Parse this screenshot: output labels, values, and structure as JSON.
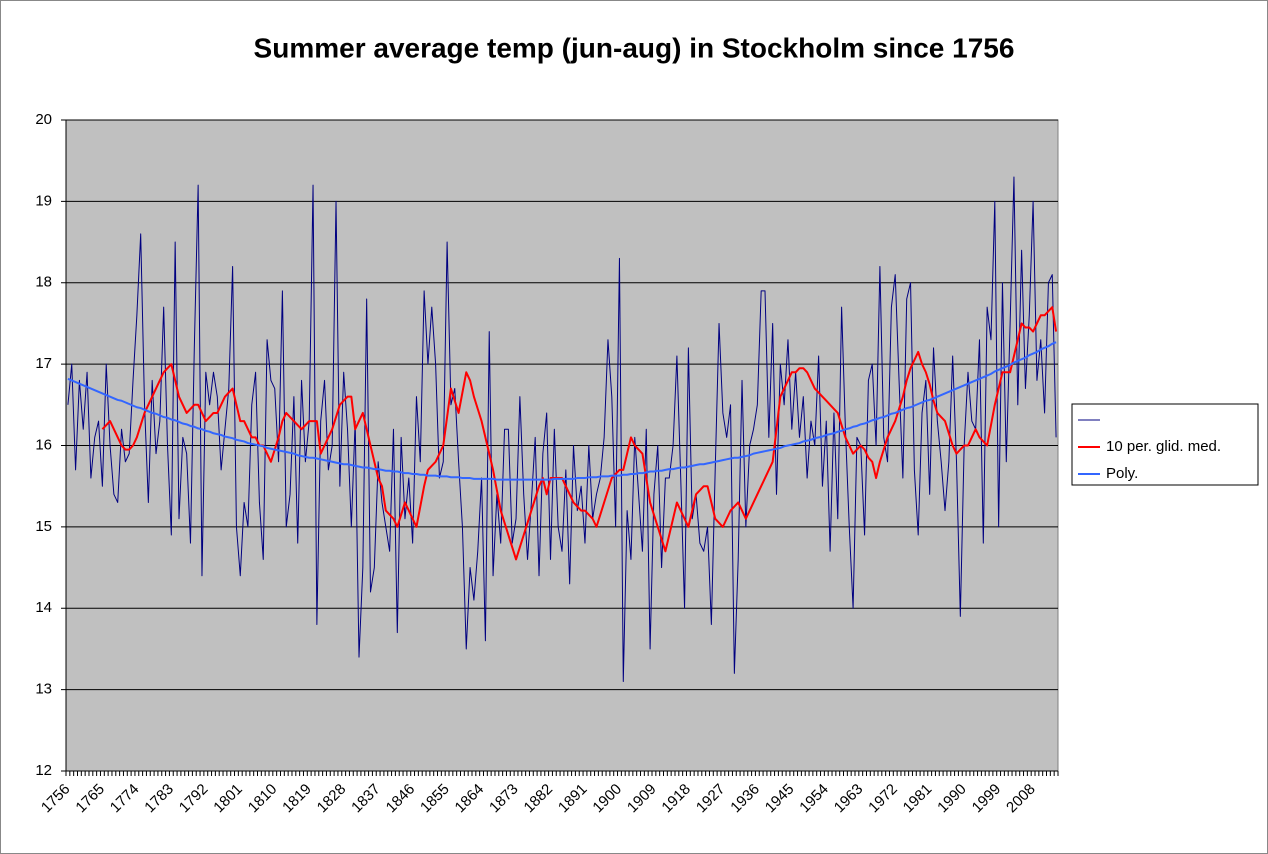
{
  "chart_data": {
    "type": "line",
    "title": "Summer average temp (jun-aug) in Stockholm since 1756",
    "categories": [
      "1756",
      null,
      null,
      null,
      null,
      null,
      null,
      null,
      null,
      "1765",
      null,
      null,
      null,
      null,
      null,
      null,
      null,
      null,
      "1774",
      null,
      null,
      null,
      null,
      null,
      null,
      null,
      null,
      "1783",
      null,
      null,
      null,
      null,
      null,
      null,
      null,
      null,
      "1792",
      null,
      null,
      null,
      null,
      null,
      null,
      null,
      null,
      "1801",
      null,
      null,
      null,
      null,
      null,
      null,
      null,
      null,
      "1810",
      null,
      null,
      null,
      null,
      null,
      null,
      null,
      null,
      "1819",
      null,
      null,
      null,
      null,
      null,
      null,
      null,
      null,
      "1828",
      null,
      null,
      null,
      null,
      null,
      null,
      null,
      null,
      "1837",
      null,
      null,
      null,
      null,
      null,
      null,
      null,
      null,
      "1846",
      null,
      null,
      null,
      null,
      null,
      null,
      null,
      null,
      "1855",
      null,
      null,
      null,
      null,
      null,
      null,
      null,
      null,
      "1864",
      null,
      null,
      null,
      null,
      null,
      null,
      null,
      null,
      "1873",
      null,
      null,
      null,
      null,
      null,
      null,
      null,
      null,
      "1882",
      null,
      null,
      null,
      null,
      null,
      null,
      null,
      null,
      "1891",
      null,
      null,
      null,
      null,
      null,
      null,
      null,
      null,
      "1900",
      null,
      null,
      null,
      null,
      null,
      null,
      null,
      null,
      "1909",
      null,
      null,
      null,
      null,
      null,
      null,
      null,
      null,
      "1918",
      null,
      null,
      null,
      null,
      null,
      null,
      null,
      null,
      "1927",
      null,
      null,
      null,
      null,
      null,
      null,
      null,
      null,
      "1936",
      null,
      null,
      null,
      null,
      null,
      null,
      null,
      null,
      "1945",
      null,
      null,
      null,
      null,
      null,
      null,
      null,
      null,
      "1954",
      null,
      null,
      null,
      null,
      null,
      null,
      null,
      null,
      "1963",
      null,
      null,
      null,
      null,
      null,
      null,
      null,
      null,
      "1972",
      null,
      null,
      null,
      null,
      null,
      null,
      null,
      null,
      "1981",
      null,
      null,
      null,
      null,
      null,
      null,
      null,
      null,
      "1990",
      null,
      null,
      null,
      null,
      null,
      null,
      null,
      null,
      "1999",
      null,
      null,
      null,
      null,
      null,
      null,
      null,
      null,
      "2008",
      null,
      null,
      null,
      null,
      null,
      null
    ],
    "series": [
      {
        "color": "#000080",
        "values": [
          16.5,
          17.0,
          15.7,
          16.8,
          16.2,
          16.9,
          15.6,
          16.1,
          16.3,
          15.5,
          17.0,
          16.0,
          15.4,
          15.3,
          16.2,
          15.8,
          15.9,
          16.8,
          17.6,
          18.6,
          16.5,
          15.3,
          16.8,
          15.9,
          16.3,
          17.7,
          16.0,
          14.9,
          18.5,
          15.1,
          16.1,
          15.9,
          14.8,
          17.2,
          19.2,
          14.4,
          16.9,
          16.5,
          16.9,
          16.6,
          15.7,
          16.2,
          16.7,
          18.2,
          15.0,
          14.4,
          15.3,
          15.0,
          16.5,
          16.9,
          15.3,
          14.6,
          17.3,
          16.8,
          16.7,
          15.8,
          17.9,
          15.0,
          15.4,
          16.6,
          14.8,
          16.8,
          15.8,
          16.3,
          19.2,
          13.8,
          16.3,
          16.8,
          15.7,
          16.0,
          19.0,
          15.5,
          16.9,
          16.2,
          15.0,
          16.3,
          13.4,
          14.5,
          17.8,
          14.2,
          14.5,
          15.8,
          15.3,
          15.0,
          14.7,
          16.2,
          13.7,
          16.1,
          15.1,
          15.6,
          14.8,
          16.6,
          15.8,
          17.9,
          17.0,
          17.7,
          17.0,
          15.6,
          15.8,
          18.5,
          16.5,
          16.7,
          15.8,
          15.0,
          13.5,
          14.5,
          14.1,
          14.7,
          15.6,
          13.6,
          17.4,
          14.4,
          15.4,
          14.8,
          16.2,
          16.2,
          14.8,
          15.1,
          16.6,
          15.4,
          14.6,
          15.3,
          16.1,
          14.4,
          15.9,
          16.4,
          14.6,
          16.2,
          15.0,
          14.7,
          15.7,
          14.3,
          16.0,
          15.2,
          15.5,
          14.8,
          16.0,
          15.1,
          15.4,
          15.6,
          16.1,
          17.3,
          16.6,
          15.0,
          18.3,
          13.1,
          15.2,
          14.6,
          16.1,
          15.4,
          14.7,
          16.2,
          13.5,
          15.4,
          16.0,
          14.5,
          15.6,
          15.6,
          16.0,
          17.1,
          15.6,
          14.0,
          17.2,
          15.1,
          15.4,
          14.8,
          14.7,
          15.0,
          13.8,
          15.7,
          17.5,
          16.4,
          16.1,
          16.5,
          13.2,
          14.6,
          16.8,
          15.0,
          16.0,
          16.2,
          16.5,
          17.9,
          17.9,
          16.1,
          17.5,
          15.4,
          17.0,
          16.5,
          17.3,
          16.2,
          16.9,
          16.1,
          16.6,
          15.6,
          16.3,
          16.0,
          17.1,
          15.5,
          16.3,
          14.7,
          16.4,
          15.1,
          17.7,
          16.2,
          15.0,
          14.0,
          16.1,
          16.0,
          14.9,
          16.8,
          17.0,
          16.0,
          18.2,
          16.1,
          15.8,
          17.7,
          18.1,
          16.8,
          15.6,
          17.8,
          18.0,
          15.7,
          14.9,
          16.4,
          16.8,
          15.4,
          17.2,
          16.3,
          15.8,
          15.2,
          15.8,
          17.1,
          15.8,
          13.9,
          16.0,
          16.9,
          16.3,
          16.2,
          17.3,
          14.8,
          17.7,
          17.3,
          19.0,
          15.0,
          18.0,
          15.8,
          17.5,
          19.3,
          16.5,
          18.4,
          16.7,
          17.6,
          19.0,
          16.8,
          17.3,
          16.4,
          18.0,
          18.1,
          16.1
        ]
      },
      {
        "name": "10 per. glid. med.",
        "color": "#ff0000",
        "values": [
          null,
          null,
          null,
          null,
          null,
          null,
          null,
          null,
          null,
          16.2,
          16.25,
          16.3,
          16.2,
          16.1,
          16.0,
          15.95,
          15.95,
          16.0,
          16.1,
          16.25,
          16.4,
          16.5,
          16.6,
          16.7,
          16.8,
          16.9,
          16.95,
          17.0,
          16.8,
          16.6,
          16.5,
          16.4,
          16.45,
          16.5,
          16.5,
          16.4,
          16.3,
          16.35,
          16.4,
          16.4,
          16.5,
          16.6,
          16.65,
          16.7,
          16.5,
          16.3,
          16.3,
          16.2,
          16.1,
          16.1,
          16.0,
          16.0,
          15.9,
          15.8,
          15.95,
          16.1,
          16.3,
          16.4,
          16.35,
          16.3,
          16.25,
          16.2,
          16.25,
          16.3,
          16.3,
          16.3,
          15.9,
          16.0,
          16.1,
          16.2,
          16.35,
          16.5,
          16.55,
          16.6,
          16.6,
          16.2,
          16.3,
          16.4,
          16.2,
          16.0,
          15.8,
          15.6,
          15.5,
          15.2,
          15.15,
          15.1,
          15.0,
          15.15,
          15.3,
          15.2,
          15.1,
          15.0,
          15.25,
          15.5,
          15.7,
          15.75,
          15.8,
          15.9,
          16.0,
          16.35,
          16.7,
          16.55,
          16.4,
          16.65,
          16.9,
          16.8,
          16.6,
          16.45,
          16.3,
          16.1,
          15.9,
          15.7,
          15.45,
          15.2,
          15.05,
          14.9,
          14.75,
          14.6,
          14.75,
          14.9,
          15.05,
          15.2,
          15.35,
          15.5,
          15.6,
          15.4,
          15.6,
          15.6,
          15.6,
          15.6,
          15.5,
          15.4,
          15.3,
          15.25,
          15.2,
          15.2,
          15.15,
          15.1,
          15.0,
          15.15,
          15.3,
          15.45,
          15.6,
          15.65,
          15.7,
          15.7,
          15.9,
          16.1,
          16.0,
          15.95,
          15.9,
          15.6,
          15.3,
          15.15,
          15.0,
          14.85,
          14.7,
          14.9,
          15.1,
          15.3,
          15.2,
          15.1,
          15.0,
          15.2,
          15.4,
          15.45,
          15.5,
          15.5,
          15.3,
          15.1,
          15.05,
          15.0,
          15.1,
          15.2,
          15.25,
          15.3,
          15.2,
          15.1,
          15.2,
          15.3,
          15.4,
          15.5,
          15.6,
          15.7,
          15.8,
          16.2,
          16.6,
          16.7,
          16.8,
          16.9,
          16.9,
          16.95,
          16.95,
          16.9,
          16.8,
          16.7,
          16.65,
          16.6,
          16.55,
          16.5,
          16.45,
          16.4,
          16.25,
          16.1,
          16.0,
          15.9,
          15.95,
          16.0,
          15.95,
          15.85,
          15.8,
          15.6,
          15.8,
          15.95,
          16.1,
          16.2,
          16.3,
          16.45,
          16.6,
          16.8,
          16.95,
          17.05,
          17.15,
          17.0,
          16.9,
          16.75,
          16.55,
          16.4,
          16.35,
          16.3,
          16.15,
          16.0,
          15.9,
          15.95,
          16.0,
          16.0,
          16.1,
          16.2,
          16.1,
          16.05,
          16.0,
          16.25,
          16.5,
          16.7,
          16.9,
          16.9,
          16.9,
          17.1,
          17.3,
          17.5,
          17.45,
          17.45,
          17.4,
          17.5,
          17.6,
          17.6,
          17.65,
          17.7,
          17.4
        ]
      },
      {
        "name": "Poly.",
        "color": "#3366ff",
        "values": [
          16.82,
          16.8,
          16.78,
          16.76,
          16.74,
          16.72,
          16.7,
          16.68,
          16.66,
          16.64,
          16.62,
          16.6,
          16.58,
          16.56,
          16.55,
          16.53,
          16.51,
          16.49,
          16.47,
          16.46,
          16.44,
          16.42,
          16.4,
          16.39,
          16.37,
          16.35,
          16.34,
          16.32,
          16.31,
          16.29,
          16.27,
          16.26,
          16.24,
          16.23,
          16.21,
          16.2,
          16.18,
          16.17,
          16.15,
          16.14,
          16.13,
          16.11,
          16.1,
          16.09,
          16.07,
          16.06,
          16.05,
          16.03,
          16.02,
          16.01,
          16.0,
          15.99,
          15.97,
          15.96,
          15.95,
          15.94,
          15.93,
          15.92,
          15.91,
          15.9,
          15.88,
          15.87,
          15.86,
          15.85,
          15.85,
          15.84,
          15.83,
          15.82,
          15.81,
          15.8,
          15.79,
          15.78,
          15.77,
          15.77,
          15.76,
          15.75,
          15.74,
          15.73,
          15.73,
          15.72,
          15.71,
          15.71,
          15.7,
          15.69,
          15.69,
          15.68,
          15.68,
          15.67,
          15.66,
          15.66,
          15.65,
          15.65,
          15.64,
          15.64,
          15.63,
          15.63,
          15.63,
          15.62,
          15.62,
          15.62,
          15.61,
          15.61,
          15.61,
          15.6,
          15.6,
          15.6,
          15.59,
          15.59,
          15.59,
          15.59,
          15.59,
          15.59,
          15.58,
          15.58,
          15.58,
          15.58,
          15.58,
          15.58,
          15.58,
          15.58,
          15.58,
          15.58,
          15.58,
          15.58,
          15.58,
          15.58,
          15.58,
          15.59,
          15.59,
          15.59,
          15.59,
          15.59,
          15.59,
          15.6,
          15.6,
          15.6,
          15.61,
          15.61,
          15.61,
          15.62,
          15.62,
          15.62,
          15.63,
          15.63,
          15.63,
          15.64,
          15.64,
          15.65,
          15.65,
          15.66,
          15.66,
          15.67,
          15.68,
          15.68,
          15.69,
          15.69,
          15.7,
          15.71,
          15.71,
          15.72,
          15.73,
          15.73,
          15.74,
          15.75,
          15.76,
          15.77,
          15.77,
          15.78,
          15.79,
          15.8,
          15.81,
          15.82,
          15.83,
          15.84,
          15.85,
          15.85,
          15.86,
          15.87,
          15.88,
          15.9,
          15.91,
          15.92,
          15.93,
          15.94,
          15.95,
          15.96,
          15.97,
          15.99,
          16.0,
          16.01,
          16.02,
          16.03,
          16.05,
          16.06,
          16.07,
          16.09,
          16.1,
          16.11,
          16.13,
          16.14,
          16.15,
          16.17,
          16.18,
          16.2,
          16.21,
          16.23,
          16.24,
          16.26,
          16.27,
          16.29,
          16.31,
          16.32,
          16.34,
          16.35,
          16.37,
          16.39,
          16.4,
          16.42,
          16.44,
          16.46,
          16.47,
          16.49,
          16.51,
          16.53,
          16.55,
          16.56,
          16.58,
          16.6,
          16.62,
          16.64,
          16.66,
          16.68,
          16.7,
          16.72,
          16.74,
          16.76,
          16.78,
          16.8,
          16.82,
          16.84,
          16.86,
          16.88,
          16.91,
          16.93,
          16.95,
          16.97,
          16.99,
          17.02,
          17.04,
          17.06,
          17.08,
          17.11,
          17.13,
          17.15,
          17.18,
          17.2,
          17.22,
          17.25,
          17.27
        ]
      }
    ],
    "ylim": [
      12,
      20
    ],
    "yticks": [
      12,
      13,
      14,
      15,
      16,
      17,
      18,
      19,
      20
    ],
    "grid": true,
    "plot_background": "#c0c0c0",
    "legend": "right"
  }
}
